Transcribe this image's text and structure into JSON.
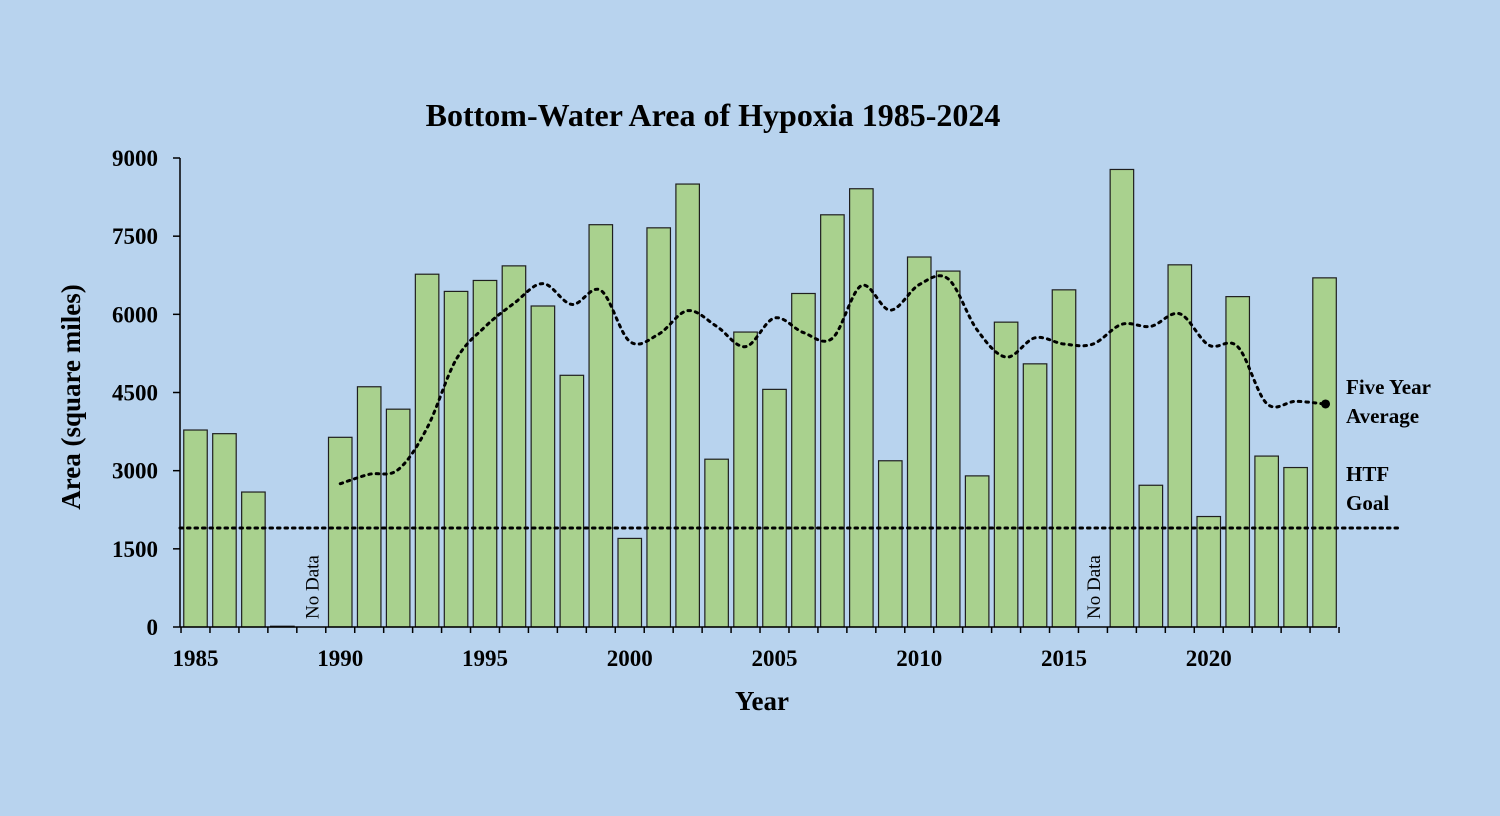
{
  "chart_data": {
    "type": "bar",
    "title": "Bottom-Water Area of Hypoxia 1985-2024",
    "xlabel": "Year",
    "ylabel": "Area (square miles)",
    "ylim": [
      0,
      9000
    ],
    "yticks": [
      "0",
      "1500",
      "3000",
      "4500",
      "6000",
      "7500",
      "9000"
    ],
    "xticks": [
      "1985",
      "1990",
      "1995",
      "2000",
      "2005",
      "2010",
      "2015",
      "2020"
    ],
    "grid": false,
    "legend": "none",
    "series": [
      {
        "type": "bar",
        "x": [
          1985,
          1986,
          1987,
          1988,
          1989,
          1990,
          1991,
          1992,
          1993,
          1994,
          1995,
          1996,
          1997,
          1998,
          1999,
          2000,
          2001,
          2002,
          2003,
          2004,
          2005,
          2006,
          2007,
          2008,
          2009,
          2010,
          2011,
          2012,
          2013,
          2014,
          2015,
          2016,
          2017,
          2018,
          2019,
          2020,
          2021,
          2022,
          2023,
          2024
        ],
        "values": [
          3780,
          3710,
          2590,
          15,
          null,
          3640,
          4610,
          4180,
          6770,
          6440,
          6650,
          6930,
          6160,
          4830,
          7720,
          1700,
          7660,
          8500,
          3220,
          5660,
          4560,
          6400,
          7910,
          8410,
          3190,
          7100,
          6830,
          2900,
          5850,
          5050,
          6470,
          null,
          8780,
          2720,
          6950,
          2120,
          6340,
          3280,
          3060,
          6700
        ]
      },
      {
        "type": "line",
        "x": [
          1990,
          1991,
          1992,
          1993,
          1994,
          1995,
          1996,
          1997,
          1998,
          1999,
          2000,
          2001,
          2002,
          2003,
          2004,
          2005,
          2006,
          2007,
          2008,
          2009,
          2010,
          2011,
          2012,
          2013,
          2014,
          2015,
          2016,
          2017,
          2018,
          2019,
          2020,
          2021,
          2022,
          2023,
          2024
        ],
        "values": [
          2750,
          2930,
          3020,
          3820,
          5130,
          5760,
          6210,
          6590,
          6190,
          6460,
          5480,
          5620,
          6070,
          5770,
          5380,
          5930,
          5650,
          5540,
          6550,
          6080,
          6570,
          6680,
          5700,
          5180,
          5550,
          5430,
          5430,
          5810,
          5770,
          6010,
          5410,
          5380,
          4290,
          4330,
          4280
        ]
      }
    ],
    "goal_value": 1900,
    "annotations": {
      "no_data": "No Data",
      "five_year_line1": "Five Year",
      "five_year_line2": "Average",
      "htf_line1": "HTF",
      "htf_line2": "Goal"
    },
    "colors": {
      "background": "#b8d3ee",
      "bar_fill": "#a9d18e",
      "bar_stroke": "#1f1f1f",
      "line": "#000000"
    }
  }
}
